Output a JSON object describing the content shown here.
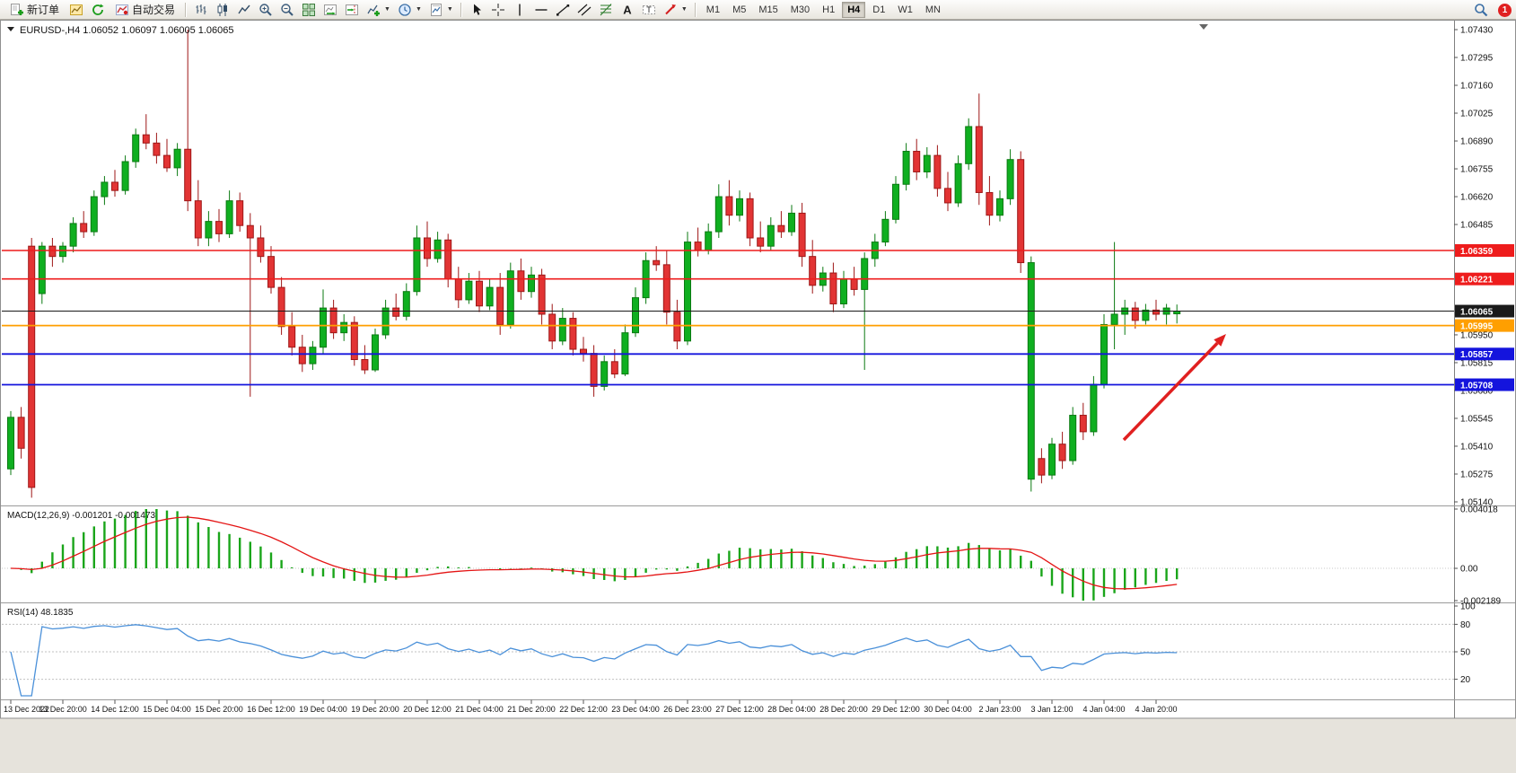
{
  "toolbar": {
    "groups": [
      {
        "name": "trading",
        "items": [
          {
            "name": "new-order-button",
            "icon": "new-order-icon",
            "label": "新订单"
          },
          {
            "name": "charts-button",
            "icon": "charts-icon"
          },
          {
            "name": "refresh-button",
            "icon": "refresh-icon"
          },
          {
            "name": "auto-trading-button",
            "icon": "auto-trading-icon",
            "label": "自动交易"
          }
        ]
      },
      {
        "name": "chart-controls",
        "items": [
          {
            "name": "bar-chart-button",
            "icon": "bar-chart-icon"
          },
          {
            "name": "candlestick-button",
            "icon": "candlestick-icon"
          },
          {
            "name": "line-chart-button",
            "icon": "line-chart-icon"
          },
          {
            "name": "zoom-in-button",
            "icon": "zoom-in-icon"
          },
          {
            "name": "zoom-out-button",
            "icon": "zoom-out-icon"
          },
          {
            "name": "tile-windows-button",
            "icon": "tile-windows-icon"
          },
          {
            "name": "auto-scroll-button",
            "icon": "auto-scroll-icon"
          },
          {
            "name": "chart-shift-button",
            "icon": "chart-shift-icon"
          },
          {
            "name": "indicators-button",
            "icon": "indicators-icon",
            "dropdown": true
          },
          {
            "name": "periods-button",
            "icon": "clock-icon",
            "dropdown": true
          },
          {
            "name": "templates-button",
            "icon": "template-icon",
            "dropdown": true
          }
        ]
      },
      {
        "name": "drawing-tools",
        "items": [
          {
            "name": "cursor-button",
            "icon": "cursor-icon"
          },
          {
            "name": "crosshair-button",
            "icon": "crosshair-icon"
          },
          {
            "name": "vertical-line-button",
            "icon": "vertical-line-icon"
          },
          {
            "name": "horizontal-line-button",
            "icon": "horizontal-line-icon"
          },
          {
            "name": "trendline-button",
            "icon": "trendline-icon"
          },
          {
            "name": "channel-button",
            "icon": "channel-icon"
          },
          {
            "name": "fibonacci-button",
            "icon": "fibonacci-icon"
          },
          {
            "name": "text-button",
            "icon": "text-icon"
          },
          {
            "name": "label-button",
            "icon": "label-icon"
          },
          {
            "name": "arrows-button",
            "icon": "arrows-icon",
            "dropdown": true
          }
        ]
      },
      {
        "name": "timeframes",
        "items": [
          {
            "name": "timeframe-m1",
            "label": "M1"
          },
          {
            "name": "timeframe-m5",
            "label": "M5"
          },
          {
            "name": "timeframe-m15",
            "label": "M15"
          },
          {
            "name": "timeframe-m30",
            "label": "M30"
          },
          {
            "name": "timeframe-h1",
            "label": "H1"
          },
          {
            "name": "timeframe-h4",
            "label": "H4",
            "active": true
          },
          {
            "name": "timeframe-d1",
            "label": "D1"
          },
          {
            "name": "timeframe-w1",
            "label": "W1"
          },
          {
            "name": "timeframe-mn",
            "label": "MN"
          }
        ]
      }
    ],
    "right": {
      "search_icon": "search-icon",
      "notification_count": "1"
    }
  },
  "chart_data": {
    "type": "candlestick",
    "symbol": "EURUSD-",
    "timeframe": "H4",
    "title": {
      "symbol_period": "EURUSD-,H4",
      "ohlc": "1.06052 1.06097 1.06005 1.06065"
    },
    "price_axis": {
      "max": 1.0743,
      "min": 1.0514,
      "labels": [
        "1.07430",
        "1.07295",
        "1.07160",
        "1.07025",
        "1.06890",
        "1.06755",
        "1.06620",
        "1.06485",
        "1.05950",
        "1.05815",
        "1.05680",
        "1.05545",
        "1.05410",
        "1.05275",
        "1.05140"
      ]
    },
    "levels": [
      {
        "price": 1.06359,
        "label": "1.06359",
        "color": "#ee1c1c",
        "type": "resistance"
      },
      {
        "price": 1.06221,
        "label": "1.06221",
        "color": "#ee1c1c",
        "type": "resistance"
      },
      {
        "price": 1.06065,
        "label": "1.06065",
        "color": "#1a1a1a",
        "type": "last-price"
      },
      {
        "price": 1.05995,
        "label": "1.05995",
        "color": "#ff9f00",
        "type": "support"
      },
      {
        "price": 1.05857,
        "label": "1.05857",
        "color": "#1414dd",
        "type": "support"
      },
      {
        "price": 1.05708,
        "label": "1.05708",
        "color": "#1414dd",
        "type": "support"
      }
    ],
    "time_labels": [
      "13 Dec 2022",
      "13 Dec 20:00",
      "14 Dec 12:00",
      "15 Dec 04:00",
      "15 Dec 20:00",
      "16 Dec 12:00",
      "19 Dec 04:00",
      "19 Dec 20:00",
      "20 Dec 12:00",
      "21 Dec 04:00",
      "21 Dec 20:00",
      "22 Dec 12:00",
      "23 Dec 04:00",
      "26 Dec 23:00",
      "27 Dec 12:00",
      "28 Dec 04:00",
      "28 Dec 20:00",
      "29 Dec 12:00",
      "30 Dec 04:00",
      "2 Jan 23:00",
      "3 Jan 12:00",
      "4 Jan 04:00",
      "4 Jan 20:00"
    ],
    "colors": {
      "up": "#0faf20",
      "up_border": "#0b7a12",
      "down": "#e23434",
      "down_border": "#9e1717"
    },
    "annotation_arrow": {
      "color": "#e02020",
      "from": [
        1252,
        468
      ],
      "to": [
        1366,
        350
      ]
    },
    "indicators": {
      "macd": {
        "label": "MACD(12,26,9)",
        "values_label": "-0.001201 -0.001473",
        "axis": [
          "0.004018",
          "0.00",
          "-0.002189"
        ],
        "max": 0.004018,
        "min": -0.002189,
        "histogram_color": "#1aa51a",
        "signal_color": "#e41414"
      },
      "rsi": {
        "label": "RSI(14)",
        "value_label": "48.1835",
        "axis": [
          "100",
          "80",
          "50",
          "20"
        ],
        "levels": [
          80,
          50,
          20
        ],
        "line_color": "#4a90d9"
      }
    },
    "candles": [
      [
        1.053,
        1.0558,
        1.0527,
        1.0555
      ],
      [
        1.0555,
        1.056,
        1.0535,
        1.054
      ],
      [
        1.0638,
        1.0642,
        1.0516,
        1.0521
      ],
      [
        1.0615,
        1.064,
        1.061,
        1.0638
      ],
      [
        1.0638,
        1.0642,
        1.0628,
        1.0633
      ],
      [
        1.0633,
        1.064,
        1.063,
        1.0638
      ],
      [
        1.0638,
        1.0652,
        1.0635,
        1.0649
      ],
      [
        1.0649,
        1.0655,
        1.0642,
        1.0645
      ],
      [
        1.0645,
        1.0665,
        1.0643,
        1.0662
      ],
      [
        1.0662,
        1.0672,
        1.0658,
        1.0669
      ],
      [
        1.0669,
        1.0675,
        1.0662,
        1.0665
      ],
      [
        1.0665,
        1.0682,
        1.0663,
        1.0679
      ],
      [
        1.0679,
        1.0695,
        1.0676,
        1.0692
      ],
      [
        1.0692,
        1.0702,
        1.0685,
        1.0688
      ],
      [
        1.0688,
        1.0693,
        1.0678,
        1.0682
      ],
      [
        1.0682,
        1.069,
        1.0674,
        1.0676
      ],
      [
        1.0676,
        1.0688,
        1.0672,
        1.0685
      ],
      [
        1.0685,
        1.0743,
        1.0655,
        1.066
      ],
      [
        1.066,
        1.067,
        1.0638,
        1.0642
      ],
      [
        1.0642,
        1.0655,
        1.0638,
        1.065
      ],
      [
        1.065,
        1.0656,
        1.064,
        1.0644
      ],
      [
        1.0644,
        1.0665,
        1.0642,
        1.066
      ],
      [
        1.066,
        1.0664,
        1.0645,
        1.0648
      ],
      [
        1.0648,
        1.0654,
        1.0565,
        1.0642
      ],
      [
        1.0642,
        1.0648,
        1.063,
        1.0633
      ],
      [
        1.0633,
        1.0638,
        1.0615,
        1.0618
      ],
      [
        1.0618,
        1.0623,
        1.0595,
        1.0599
      ],
      [
        1.0599,
        1.0606,
        1.0585,
        1.0589
      ],
      [
        1.0589,
        1.0595,
        1.0577,
        1.0581
      ],
      [
        1.0581,
        1.0592,
        1.0578,
        1.0589
      ],
      [
        1.0589,
        1.0617,
        1.0586,
        1.0608
      ],
      [
        1.0608,
        1.0612,
        1.0593,
        1.0596
      ],
      [
        1.0596,
        1.0605,
        1.0592,
        1.0601
      ],
      [
        1.0601,
        1.0604,
        1.058,
        1.0583
      ],
      [
        1.0583,
        1.059,
        1.0576,
        1.0578
      ],
      [
        1.0578,
        1.0598,
        1.0577,
        1.0595
      ],
      [
        1.0595,
        1.0612,
        1.0593,
        1.0608
      ],
      [
        1.0608,
        1.0615,
        1.0602,
        1.0604
      ],
      [
        1.0604,
        1.062,
        1.0602,
        1.0616
      ],
      [
        1.0616,
        1.0648,
        1.0614,
        1.0642
      ],
      [
        1.0642,
        1.065,
        1.0628,
        1.0632
      ],
      [
        1.0632,
        1.0645,
        1.063,
        1.0641
      ],
      [
        1.0641,
        1.0644,
        1.0618,
        1.0622
      ],
      [
        1.0622,
        1.0628,
        1.0608,
        1.0612
      ],
      [
        1.0612,
        1.0625,
        1.061,
        1.0621
      ],
      [
        1.0621,
        1.0626,
        1.0606,
        1.0609
      ],
      [
        1.0609,
        1.0622,
        1.0607,
        1.0618
      ],
      [
        1.0618,
        1.0625,
        1.0595,
        1.06
      ],
      [
        1.06,
        1.063,
        1.0598,
        1.0626
      ],
      [
        1.0626,
        1.0632,
        1.0612,
        1.0616
      ],
      [
        1.0616,
        1.0628,
        1.0613,
        1.0624
      ],
      [
        1.0624,
        1.0627,
        1.06,
        1.0605
      ],
      [
        1.0605,
        1.061,
        1.0588,
        1.0592
      ],
      [
        1.0592,
        1.0608,
        1.059,
        1.0603
      ],
      [
        1.0603,
        1.0606,
        1.0585,
        1.0588
      ],
      [
        1.0588,
        1.0594,
        1.0582,
        1.0586
      ],
      [
        1.0586,
        1.059,
        1.0565,
        1.057
      ],
      [
        1.057,
        1.0585,
        1.0568,
        1.0582
      ],
      [
        1.0582,
        1.0588,
        1.0574,
        1.0576
      ],
      [
        1.0576,
        1.06,
        1.0575,
        1.0596
      ],
      [
        1.0596,
        1.0618,
        1.0594,
        1.0613
      ],
      [
        1.0613,
        1.0635,
        1.061,
        1.0631
      ],
      [
        1.0631,
        1.0638,
        1.0626,
        1.0629
      ],
      [
        1.0629,
        1.0636,
        1.06,
        1.0606
      ],
      [
        1.0606,
        1.0612,
        1.0588,
        1.0592
      ],
      [
        1.0592,
        1.0645,
        1.059,
        1.064
      ],
      [
        1.064,
        1.0647,
        1.0633,
        1.0636
      ],
      [
        1.0636,
        1.0649,
        1.0634,
        1.0645
      ],
      [
        1.0645,
        1.0668,
        1.0642,
        1.0662
      ],
      [
        1.0662,
        1.067,
        1.0648,
        1.0653
      ],
      [
        1.0653,
        1.0665,
        1.065,
        1.0661
      ],
      [
        1.0661,
        1.0664,
        1.0638,
        1.0642
      ],
      [
        1.0642,
        1.065,
        1.0635,
        1.0638
      ],
      [
        1.0638,
        1.0652,
        1.0636,
        1.0648
      ],
      [
        1.0648,
        1.0655,
        1.0642,
        1.0645
      ],
      [
        1.0645,
        1.0658,
        1.0643,
        1.0654
      ],
      [
        1.0654,
        1.0659,
        1.0628,
        1.0633
      ],
      [
        1.0633,
        1.0641,
        1.0615,
        1.0619
      ],
      [
        1.0619,
        1.0628,
        1.0616,
        1.0625
      ],
      [
        1.0625,
        1.063,
        1.0606,
        1.061
      ],
      [
        1.061,
        1.0626,
        1.0608,
        1.0622
      ],
      [
        1.0622,
        1.0628,
        1.0614,
        1.0617
      ],
      [
        1.0617,
        1.0635,
        1.0578,
        1.0632
      ],
      [
        1.0632,
        1.0644,
        1.0628,
        1.064
      ],
      [
        1.064,
        1.0655,
        1.0638,
        1.0651
      ],
      [
        1.0651,
        1.0672,
        1.0649,
        1.0668
      ],
      [
        1.0668,
        1.0688,
        1.0665,
        1.0684
      ],
      [
        1.0684,
        1.069,
        1.067,
        1.0674
      ],
      [
        1.0674,
        1.0686,
        1.0671,
        1.0682
      ],
      [
        1.0682,
        1.0687,
        1.0662,
        1.0666
      ],
      [
        1.0666,
        1.0674,
        1.0655,
        1.0659
      ],
      [
        1.0659,
        1.0682,
        1.0657,
        1.0678
      ],
      [
        1.0678,
        1.07,
        1.0675,
        1.0696
      ],
      [
        1.0696,
        1.0712,
        1.0658,
        1.0664
      ],
      [
        1.0664,
        1.0672,
        1.0648,
        1.0653
      ],
      [
        1.0653,
        1.0665,
        1.065,
        1.0661
      ],
      [
        1.0661,
        1.0685,
        1.0658,
        1.068
      ],
      [
        1.068,
        1.0684,
        1.0625,
        1.063
      ],
      [
        1.0525,
        1.0633,
        1.0519,
        1.063
      ],
      [
        1.0535,
        1.054,
        1.0523,
        1.0527
      ],
      [
        1.0527,
        1.0545,
        1.0525,
        1.0542
      ],
      [
        1.0542,
        1.0548,
        1.053,
        1.0534
      ],
      [
        1.0534,
        1.056,
        1.0532,
        1.0556
      ],
      [
        1.0556,
        1.0562,
        1.0544,
        1.0548
      ],
      [
        1.0548,
        1.0575,
        1.0546,
        1.0571
      ],
      [
        1.0571,
        1.0605,
        1.0569,
        1.06
      ],
      [
        1.06,
        1.064,
        1.0588,
        1.0605
      ],
      [
        1.0605,
        1.0612,
        1.0595,
        1.0608
      ],
      [
        1.0608,
        1.0611,
        1.0598,
        1.0602
      ],
      [
        1.0602,
        1.061,
        1.06,
        1.0607
      ],
      [
        1.0607,
        1.0612,
        1.0602,
        1.0605
      ],
      [
        1.0605,
        1.061,
        1.06,
        1.0608
      ],
      [
        1.06052,
        1.06097,
        1.06005,
        1.06065
      ]
    ]
  }
}
